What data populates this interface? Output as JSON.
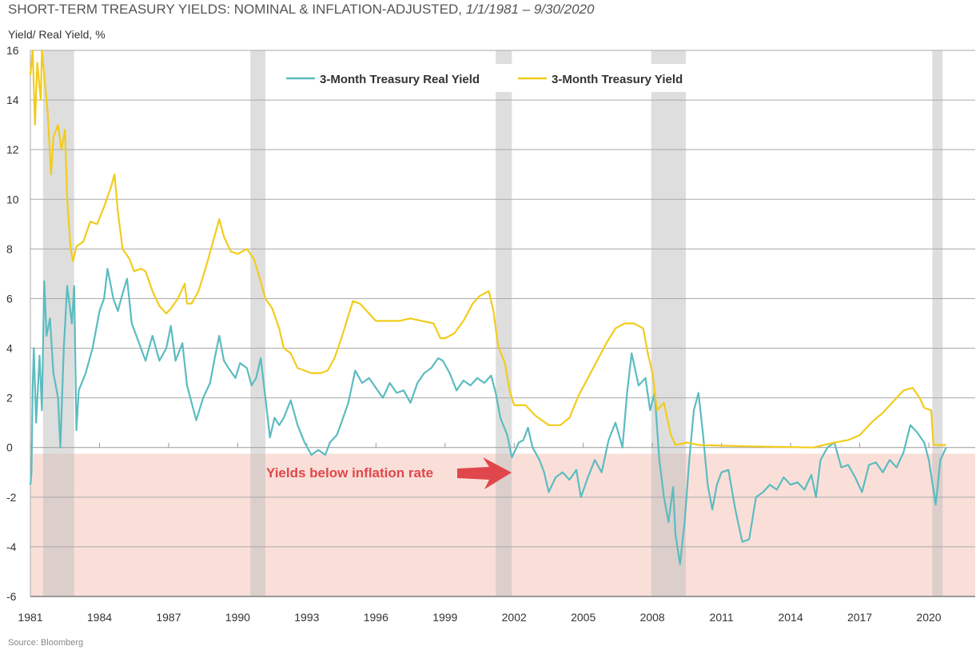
{
  "chart_data": {
    "type": "line",
    "title": "SHORT-TERM TREASURY YIELDS: NOMINAL & INFLATION-ADJUSTED,",
    "title_dates": "1/1/1981 – 9/30/2020",
    "ylabel": "Yield/ Real Yield, %",
    "source": "Source: Bloomberg",
    "ylim": [
      -6,
      16
    ],
    "yticks": [
      16,
      14,
      12,
      10,
      8,
      6,
      4,
      2,
      0,
      -2,
      -4,
      -6
    ],
    "xlim": [
      1981,
      2021.9
    ],
    "xticks": [
      1981,
      1984,
      1987,
      1990,
      1993,
      1996,
      1999,
      2002,
      2005,
      2008,
      2011,
      2014,
      2017,
      2020
    ],
    "grid": "horizontal",
    "legend_position": "top-center",
    "annotation": {
      "text": "Yields below inflation rate",
      "color": "#e0474c",
      "shaded_region_below": -0.25,
      "shade_color": "#f9d9d2"
    },
    "recessions": [
      [
        1981.55,
        1982.9
      ],
      [
        1990.55,
        1991.2
      ],
      [
        2001.2,
        2001.9
      ],
      [
        2007.95,
        2009.45
      ],
      [
        2020.15,
        2020.6
      ]
    ],
    "series": [
      {
        "name": "3-Month Treasury Real Yield",
        "color": "#5bbcc0",
        "points": [
          [
            1981.0,
            -1.5
          ],
          [
            1981.05,
            -1
          ],
          [
            1981.1,
            2.5
          ],
          [
            1981.15,
            4
          ],
          [
            1981.25,
            1
          ],
          [
            1981.4,
            3.7
          ],
          [
            1981.5,
            1.5
          ],
          [
            1981.6,
            6.7
          ],
          [
            1981.7,
            4.5
          ],
          [
            1981.85,
            5.2
          ],
          [
            1982.0,
            3.0
          ],
          [
            1982.2,
            2.0
          ],
          [
            1982.3,
            0.0
          ],
          [
            1982.45,
            4.0
          ],
          [
            1982.6,
            6.5
          ],
          [
            1982.8,
            5.0
          ],
          [
            1982.9,
            6.5
          ],
          [
            1983.0,
            0.7
          ],
          [
            1983.1,
            2.3
          ],
          [
            1983.4,
            3.0
          ],
          [
            1983.7,
            4.0
          ],
          [
            1984.0,
            5.5
          ],
          [
            1984.2,
            6.0
          ],
          [
            1984.35,
            7.2
          ],
          [
            1984.6,
            6.0
          ],
          [
            1984.8,
            5.5
          ],
          [
            1985.0,
            6.2
          ],
          [
            1985.2,
            6.8
          ],
          [
            1985.4,
            5.0
          ],
          [
            1985.6,
            4.5
          ],
          [
            1985.8,
            4.0
          ],
          [
            1986.0,
            3.5
          ],
          [
            1986.3,
            4.5
          ],
          [
            1986.6,
            3.5
          ],
          [
            1986.9,
            4.0
          ],
          [
            1987.1,
            4.9
          ],
          [
            1987.3,
            3.5
          ],
          [
            1987.6,
            4.2
          ],
          [
            1987.8,
            2.5
          ],
          [
            1988.0,
            1.8
          ],
          [
            1988.2,
            1.1
          ],
          [
            1988.5,
            2.0
          ],
          [
            1988.8,
            2.6
          ],
          [
            1989.0,
            3.6
          ],
          [
            1989.2,
            4.5
          ],
          [
            1989.4,
            3.5
          ],
          [
            1989.6,
            3.2
          ],
          [
            1989.9,
            2.8
          ],
          [
            1990.1,
            3.4
          ],
          [
            1990.4,
            3.2
          ],
          [
            1990.6,
            2.5
          ],
          [
            1990.8,
            2.8
          ],
          [
            1991.0,
            3.6
          ],
          [
            1991.2,
            2.0
          ],
          [
            1991.4,
            0.4
          ],
          [
            1991.6,
            1.2
          ],
          [
            1991.8,
            0.9
          ],
          [
            1992.0,
            1.2
          ],
          [
            1992.3,
            1.9
          ],
          [
            1992.6,
            0.9
          ],
          [
            1992.9,
            0.2
          ],
          [
            1993.2,
            -0.3
          ],
          [
            1993.5,
            -0.1
          ],
          [
            1993.8,
            -0.3
          ],
          [
            1994.0,
            0.2
          ],
          [
            1994.3,
            0.5
          ],
          [
            1994.5,
            1.0
          ],
          [
            1994.8,
            1.8
          ],
          [
            1995.1,
            3.1
          ],
          [
            1995.4,
            2.6
          ],
          [
            1995.7,
            2.8
          ],
          [
            1996.0,
            2.4
          ],
          [
            1996.3,
            2.0
          ],
          [
            1996.6,
            2.6
          ],
          [
            1996.9,
            2.2
          ],
          [
            1997.2,
            2.3
          ],
          [
            1997.5,
            1.8
          ],
          [
            1997.8,
            2.6
          ],
          [
            1998.1,
            3.0
          ],
          [
            1998.4,
            3.2
          ],
          [
            1998.7,
            3.6
          ],
          [
            1998.9,
            3.5
          ],
          [
            1999.2,
            3.0
          ],
          [
            1999.5,
            2.3
          ],
          [
            1999.8,
            2.7
          ],
          [
            2000.1,
            2.5
          ],
          [
            2000.4,
            2.8
          ],
          [
            2000.7,
            2.6
          ],
          [
            2001.0,
            2.9
          ],
          [
            2001.2,
            2.2
          ],
          [
            2001.4,
            1.2
          ],
          [
            2001.7,
            0.5
          ],
          [
            2001.9,
            -0.4
          ],
          [
            2002.2,
            0.2
          ],
          [
            2002.4,
            0.3
          ],
          [
            2002.6,
            0.8
          ],
          [
            2002.8,
            0.0
          ],
          [
            2003.1,
            -0.5
          ],
          [
            2003.3,
            -1.0
          ],
          [
            2003.5,
            -1.8
          ],
          [
            2003.8,
            -1.2
          ],
          [
            2004.1,
            -1.0
          ],
          [
            2004.4,
            -1.3
          ],
          [
            2004.7,
            -0.9
          ],
          [
            2004.9,
            -2.0
          ],
          [
            2005.2,
            -1.2
          ],
          [
            2005.5,
            -0.5
          ],
          [
            2005.8,
            -1.0
          ],
          [
            2006.1,
            0.3
          ],
          [
            2006.4,
            1.0
          ],
          [
            2006.7,
            0.0
          ],
          [
            2006.9,
            2.2
          ],
          [
            2007.1,
            3.8
          ],
          [
            2007.4,
            2.5
          ],
          [
            2007.7,
            2.8
          ],
          [
            2007.9,
            1.5
          ],
          [
            2008.1,
            2.2
          ],
          [
            2008.3,
            -0.5
          ],
          [
            2008.5,
            -2.0
          ],
          [
            2008.7,
            -3.0
          ],
          [
            2008.9,
            -1.6
          ],
          [
            2009.0,
            -3.5
          ],
          [
            2009.2,
            -4.7
          ],
          [
            2009.4,
            -3.0
          ],
          [
            2009.6,
            -0.5
          ],
          [
            2009.8,
            1.5
          ],
          [
            2010.0,
            2.2
          ],
          [
            2010.2,
            0.5
          ],
          [
            2010.4,
            -1.5
          ],
          [
            2010.6,
            -2.5
          ],
          [
            2010.8,
            -1.5
          ],
          [
            2011.0,
            -1.0
          ],
          [
            2011.3,
            -0.9
          ],
          [
            2011.6,
            -2.5
          ],
          [
            2011.9,
            -3.8
          ],
          [
            2012.2,
            -3.7
          ],
          [
            2012.5,
            -2.0
          ],
          [
            2012.8,
            -1.8
          ],
          [
            2013.1,
            -1.5
          ],
          [
            2013.4,
            -1.7
          ],
          [
            2013.7,
            -1.2
          ],
          [
            2014.0,
            -1.5
          ],
          [
            2014.3,
            -1.4
          ],
          [
            2014.6,
            -1.7
          ],
          [
            2014.9,
            -1.1
          ],
          [
            2015.1,
            -2.0
          ],
          [
            2015.3,
            -0.5
          ],
          [
            2015.6,
            0.0
          ],
          [
            2015.9,
            0.2
          ],
          [
            2016.2,
            -0.8
          ],
          [
            2016.5,
            -0.7
          ],
          [
            2016.8,
            -1.2
          ],
          [
            2017.1,
            -1.8
          ],
          [
            2017.4,
            -0.7
          ],
          [
            2017.7,
            -0.6
          ],
          [
            2018.0,
            -1.0
          ],
          [
            2018.3,
            -0.5
          ],
          [
            2018.6,
            -0.8
          ],
          [
            2018.9,
            -0.2
          ],
          [
            2019.2,
            0.9
          ],
          [
            2019.5,
            0.6
          ],
          [
            2019.8,
            0.2
          ],
          [
            2020.0,
            -0.5
          ],
          [
            2020.3,
            -2.3
          ],
          [
            2020.5,
            -0.5
          ],
          [
            2020.75,
            0.0
          ]
        ]
      },
      {
        "name": "3-Month Treasury Yield",
        "color": "#f2cc1c",
        "points": [
          [
            1981.0,
            15
          ],
          [
            1981.1,
            16
          ],
          [
            1981.2,
            13
          ],
          [
            1981.3,
            15.5
          ],
          [
            1981.45,
            14
          ],
          [
            1981.5,
            16
          ],
          [
            1981.6,
            15
          ],
          [
            1981.75,
            13.5
          ],
          [
            1981.9,
            11
          ],
          [
            1982.0,
            12.5
          ],
          [
            1982.2,
            13
          ],
          [
            1982.35,
            12
          ],
          [
            1982.5,
            12.8
          ],
          [
            1982.6,
            10
          ],
          [
            1982.75,
            8
          ],
          [
            1982.85,
            7.5
          ],
          [
            1983.0,
            8.1
          ],
          [
            1983.3,
            8.3
          ],
          [
            1983.6,
            9.1
          ],
          [
            1983.9,
            9.0
          ],
          [
            1984.2,
            9.7
          ],
          [
            1984.5,
            10.5
          ],
          [
            1984.65,
            11
          ],
          [
            1984.8,
            9.5
          ],
          [
            1985.0,
            8.0
          ],
          [
            1985.3,
            7.6
          ],
          [
            1985.5,
            7.1
          ],
          [
            1985.8,
            7.2
          ],
          [
            1986.0,
            7.1
          ],
          [
            1986.3,
            6.3
          ],
          [
            1986.6,
            5.7
          ],
          [
            1986.9,
            5.4
          ],
          [
            1987.1,
            5.6
          ],
          [
            1987.4,
            6.0
          ],
          [
            1987.7,
            6.6
          ],
          [
            1987.8,
            5.8
          ],
          [
            1988.0,
            5.8
          ],
          [
            1988.3,
            6.3
          ],
          [
            1988.6,
            7.2
          ],
          [
            1988.9,
            8.2
          ],
          [
            1989.2,
            9.2
          ],
          [
            1989.4,
            8.5
          ],
          [
            1989.7,
            7.9
          ],
          [
            1990.0,
            7.8
          ],
          [
            1990.4,
            8.0
          ],
          [
            1990.7,
            7.6
          ],
          [
            1990.9,
            7.0
          ],
          [
            1991.2,
            6.0
          ],
          [
            1991.5,
            5.6
          ],
          [
            1991.8,
            4.8
          ],
          [
            1992.0,
            4.0
          ],
          [
            1992.3,
            3.8
          ],
          [
            1992.6,
            3.2
          ],
          [
            1992.9,
            3.1
          ],
          [
            1993.2,
            3.0
          ],
          [
            1993.6,
            3.0
          ],
          [
            1993.9,
            3.1
          ],
          [
            1994.2,
            3.6
          ],
          [
            1994.5,
            4.4
          ],
          [
            1994.8,
            5.3
          ],
          [
            1995.0,
            5.9
          ],
          [
            1995.3,
            5.8
          ],
          [
            1995.6,
            5.5
          ],
          [
            1996.0,
            5.1
          ],
          [
            1996.5,
            5.1
          ],
          [
            1997.0,
            5.1
          ],
          [
            1997.5,
            5.2
          ],
          [
            1998.0,
            5.1
          ],
          [
            1998.5,
            5.0
          ],
          [
            1998.8,
            4.4
          ],
          [
            1999.0,
            4.4
          ],
          [
            1999.4,
            4.6
          ],
          [
            1999.8,
            5.1
          ],
          [
            2000.2,
            5.8
          ],
          [
            2000.5,
            6.1
          ],
          [
            2000.9,
            6.3
          ],
          [
            2001.1,
            5.5
          ],
          [
            2001.3,
            4.1
          ],
          [
            2001.6,
            3.4
          ],
          [
            2001.8,
            2.3
          ],
          [
            2002.0,
            1.7
          ],
          [
            2002.5,
            1.7
          ],
          [
            2002.9,
            1.3
          ],
          [
            2003.2,
            1.1
          ],
          [
            2003.5,
            0.9
          ],
          [
            2004.0,
            0.9
          ],
          [
            2004.4,
            1.2
          ],
          [
            2004.8,
            2.1
          ],
          [
            2005.2,
            2.8
          ],
          [
            2005.6,
            3.5
          ],
          [
            2006.0,
            4.2
          ],
          [
            2006.4,
            4.8
          ],
          [
            2006.8,
            5.0
          ],
          [
            2007.2,
            5.0
          ],
          [
            2007.6,
            4.8
          ],
          [
            2007.8,
            3.8
          ],
          [
            2008.0,
            3.0
          ],
          [
            2008.2,
            1.5
          ],
          [
            2008.5,
            1.8
          ],
          [
            2008.8,
            0.5
          ],
          [
            2009.0,
            0.1
          ],
          [
            2009.5,
            0.2
          ],
          [
            2010.0,
            0.1
          ],
          [
            2012.0,
            0.05
          ],
          [
            2015.0,
            0.0
          ],
          [
            2015.9,
            0.2
          ],
          [
            2016.5,
            0.3
          ],
          [
            2017.0,
            0.5
          ],
          [
            2017.5,
            1.0
          ],
          [
            2018.0,
            1.4
          ],
          [
            2018.5,
            1.9
          ],
          [
            2018.9,
            2.3
          ],
          [
            2019.3,
            2.4
          ],
          [
            2019.6,
            2.0
          ],
          [
            2019.8,
            1.6
          ],
          [
            2020.1,
            1.5
          ],
          [
            2020.2,
            0.1
          ],
          [
            2020.75,
            0.1
          ]
        ]
      }
    ]
  }
}
